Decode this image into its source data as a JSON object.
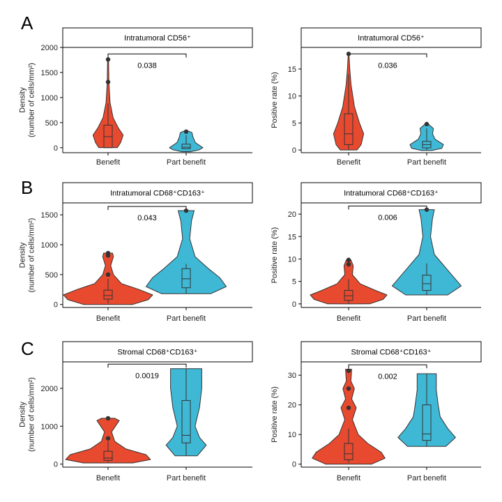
{
  "panel_letters": [
    "A",
    "B",
    "C"
  ],
  "colors": {
    "benefit": "#e84a2f",
    "part_benefit": "#3fb8d6"
  },
  "chart_data": [
    {
      "type": "violin",
      "panel": "A",
      "title": "Intratumoral CD56⁺",
      "ylabel": [
        "Density",
        "(number of cells/mm²)"
      ],
      "categories": [
        "Benefit",
        "Part benefit"
      ],
      "ylim": [
        -100,
        2000
      ],
      "yticks": [
        0,
        500,
        1000,
        1500,
        2000
      ],
      "p_value": "0.038",
      "bracket_y": 1870,
      "series": [
        {
          "name": "Benefit",
          "max": 1760,
          "q1": 0,
          "median": 220,
          "q3": 450,
          "whisker_low": 0,
          "whisker_high": 880,
          "outliers": [
            1310,
            1760
          ],
          "density": [
            [
              0,
              0.55
            ],
            [
              100,
              0.75
            ],
            [
              250,
              0.9
            ],
            [
              400,
              0.6
            ],
            [
              600,
              0.3
            ],
            [
              900,
              0.12
            ],
            [
              1300,
              0.05
            ],
            [
              1760,
              0.03
            ]
          ]
        },
        {
          "name": "Part benefit",
          "max": 330,
          "q1": -20,
          "median": 10,
          "q3": 70,
          "whisker_low": -20,
          "whisker_high": 250,
          "outliers": [
            320
          ],
          "density": [
            [
              -80,
              0.25
            ],
            [
              -40,
              0.8
            ],
            [
              0,
              1.0
            ],
            [
              100,
              0.55
            ],
            [
              220,
              0.4
            ],
            [
              300,
              0.35
            ],
            [
              330,
              0.15
            ]
          ]
        }
      ]
    },
    {
      "type": "violin",
      "panel": "A",
      "title": "Intratumoral CD56⁺",
      "ylabel": [
        "Positive rate (%)"
      ],
      "categories": [
        "Benefit",
        "Part benefit"
      ],
      "ylim": [
        -0.5,
        19
      ],
      "yticks": [
        0,
        5,
        10,
        15
      ],
      "p_value": "0.036",
      "bracket_y": 17.8,
      "series": [
        {
          "name": "Benefit",
          "max": 17.8,
          "q1": 1,
          "median": 3,
          "q3": 6.7,
          "whisker_low": 0,
          "whisker_high": 14,
          "outliers": [
            17.8
          ],
          "density": [
            [
              0,
              0.5
            ],
            [
              1,
              0.75
            ],
            [
              3,
              0.9
            ],
            [
              5,
              0.65
            ],
            [
              8,
              0.35
            ],
            [
              12,
              0.15
            ],
            [
              15,
              0.07
            ],
            [
              17.8,
              0.02
            ]
          ]
        },
        {
          "name": "Part benefit",
          "max": 4.8,
          "q1": 0.4,
          "median": 1,
          "q3": 1.6,
          "whisker_low": 0,
          "whisker_high": 4,
          "outliers": [
            4.8
          ],
          "density": [
            [
              -0.1,
              0.3
            ],
            [
              0.3,
              0.9
            ],
            [
              1,
              1.0
            ],
            [
              2,
              0.5
            ],
            [
              3,
              0.35
            ],
            [
              4,
              0.4
            ],
            [
              4.8,
              0.1
            ]
          ]
        }
      ]
    },
    {
      "type": "violin",
      "panel": "B",
      "title": "Intratumoral CD68⁺CD163⁺",
      "ylabel": [
        "Density",
        "(number of cells/mm²)"
      ],
      "categories": [
        "Benefit",
        "Part benefit"
      ],
      "ylim": [
        -50,
        1700
      ],
      "yticks": [
        0,
        500,
        1000,
        1500
      ],
      "p_value": "0.043",
      "bracket_y": 1640,
      "series": [
        {
          "name": "Benefit",
          "max": 860,
          "q1": 90,
          "median": 150,
          "q3": 240,
          "whisker_low": 20,
          "whisker_high": 430,
          "outliers": [
            500,
            820,
            860
          ],
          "density": [
            [
              0,
              0.55
            ],
            [
              80,
              0.9
            ],
            [
              160,
              1.0
            ],
            [
              250,
              0.7
            ],
            [
              350,
              0.3
            ],
            [
              500,
              0.12
            ],
            [
              650,
              0.06
            ],
            [
              800,
              0.12
            ],
            [
              860,
              0.1
            ]
          ]
        },
        {
          "name": "Part benefit",
          "max": 1570,
          "q1": 280,
          "median": 430,
          "q3": 600,
          "whisker_low": 180,
          "whisker_high": 680,
          "outliers": [
            1570
          ],
          "density": [
            [
              180,
              0.55
            ],
            [
              300,
              0.9
            ],
            [
              450,
              0.75
            ],
            [
              600,
              0.5
            ],
            [
              800,
              0.2
            ],
            [
              1100,
              0.08
            ],
            [
              1400,
              0.12
            ],
            [
              1570,
              0.18
            ]
          ]
        }
      ]
    },
    {
      "type": "violin",
      "panel": "B",
      "title": "Intratumoral CD68⁺CD163⁺",
      "ylabel": [
        "Positive rate (%)"
      ],
      "categories": [
        "Benefit",
        "Part benefit"
      ],
      "ylim": [
        -0.8,
        22.5
      ],
      "yticks": [
        0,
        5,
        10,
        15,
        20
      ],
      "p_value": "0.006",
      "bracket_y": 21.8,
      "series": [
        {
          "name": "Benefit",
          "max": 9.8,
          "q1": 0.8,
          "median": 1.8,
          "q3": 3,
          "whisker_low": 0.1,
          "whisker_high": 5.5,
          "outliers": [
            8.8,
            9.8
          ],
          "density": [
            [
              0,
              0.55
            ],
            [
              1,
              0.9
            ],
            [
              2,
              1.0
            ],
            [
              3,
              0.7
            ],
            [
              4.5,
              0.3
            ],
            [
              6.5,
              0.1
            ],
            [
              8.5,
              0.12
            ],
            [
              9.8,
              0.06
            ]
          ]
        },
        {
          "name": "Part benefit",
          "max": 21,
          "q1": 3,
          "median": 4.5,
          "q3": 6.4,
          "whisker_low": 2,
          "whisker_high": 9,
          "outliers": [
            21
          ],
          "density": [
            [
              2,
              0.55
            ],
            [
              4,
              0.9
            ],
            [
              6,
              0.7
            ],
            [
              8,
              0.5
            ],
            [
              11,
              0.2
            ],
            [
              15,
              0.1
            ],
            [
              19,
              0.15
            ],
            [
              21,
              0.2
            ]
          ]
        }
      ]
    },
    {
      "type": "violin",
      "panel": "C",
      "title": "Stromal CD68⁺CD163⁺",
      "ylabel": [
        "Density",
        "(number of cells/mm²)"
      ],
      "categories": [
        "Benefit",
        "Part benefit"
      ],
      "ylim": [
        -80,
        2700
      ],
      "yticks": [
        0,
        1000,
        2000
      ],
      "p_value": "0.0019",
      "bracket_y": 2640,
      "series": [
        {
          "name": "Benefit",
          "max": 1210,
          "q1": 100,
          "median": 160,
          "q3": 340,
          "whisker_low": 50,
          "whisker_high": 600,
          "outliers": [
            680,
            1210
          ],
          "density": [
            [
              30,
              0.55
            ],
            [
              120,
              0.95
            ],
            [
              250,
              0.85
            ],
            [
              400,
              0.4
            ],
            [
              600,
              0.15
            ],
            [
              850,
              0.08
            ],
            [
              1150,
              0.25
            ],
            [
              1210,
              0.15
            ]
          ]
        },
        {
          "name": "Part benefit",
          "max": 2520,
          "q1": 560,
          "median": 760,
          "q3": 1680,
          "whisker_low": 220,
          "whisker_high": 2520,
          "outliers": [],
          "density": [
            [
              220,
              0.25
            ],
            [
              500,
              0.45
            ],
            [
              700,
              0.3
            ],
            [
              1000,
              0.2
            ],
            [
              1500,
              0.3
            ],
            [
              2000,
              0.35
            ],
            [
              2520,
              0.35
            ]
          ]
        }
      ]
    },
    {
      "type": "violin",
      "panel": "C",
      "title": "Stromal CD68⁺CD163⁺",
      "ylabel": [
        "Positive rate (%)"
      ],
      "categories": [
        "Benefit",
        "Part benefit"
      ],
      "ylim": [
        -1,
        34.5
      ],
      "yticks": [
        0,
        10,
        20,
        30
      ],
      "p_value": "0.002",
      "bracket_y": 33.5,
      "series": [
        {
          "name": "Benefit",
          "max": 32,
          "q1": 1.5,
          "median": 3.5,
          "q3": 7,
          "whisker_low": 0.5,
          "whisker_high": 12,
          "outliers": [
            19,
            25.5,
            31.5
          ],
          "density": [
            [
              0,
              0.6
            ],
            [
              2,
              0.95
            ],
            [
              4,
              0.85
            ],
            [
              7,
              0.5
            ],
            [
              10,
              0.25
            ],
            [
              15,
              0.1
            ],
            [
              19,
              0.2
            ],
            [
              22,
              0.08
            ],
            [
              25.5,
              0.15
            ],
            [
              28,
              0.06
            ],
            [
              32,
              0.08
            ]
          ]
        },
        {
          "name": "Part benefit",
          "max": 30.5,
          "q1": 8,
          "median": 10.2,
          "q3": 20,
          "whisker_low": 6,
          "whisker_high": 30.5,
          "outliers": [],
          "density": [
            [
              6,
              0.5
            ],
            [
              9,
              0.75
            ],
            [
              12,
              0.55
            ],
            [
              16,
              0.35
            ],
            [
              20,
              0.3
            ],
            [
              25,
              0.25
            ],
            [
              30.5,
              0.25
            ]
          ]
        }
      ]
    }
  ]
}
